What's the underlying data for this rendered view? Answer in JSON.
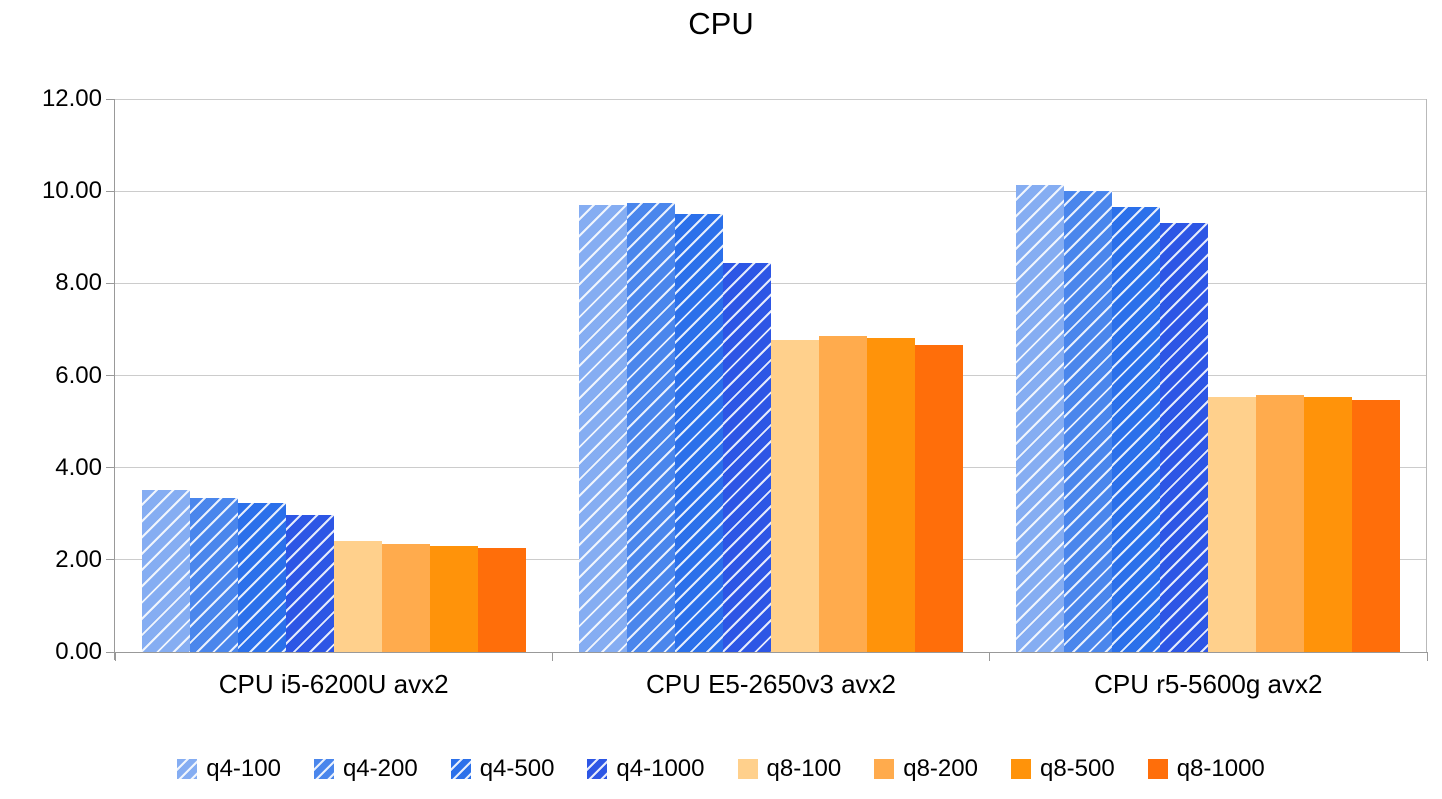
{
  "chart_data": {
    "type": "bar",
    "title": "CPU",
    "categories": [
      "CPU i5-6200U avx2",
      "CPU E5-2650v3 avx2",
      "CPU r5-5600g avx2"
    ],
    "series": [
      {
        "name": "q4-100",
        "color": "#85ADF2",
        "hatch": true,
        "values": [
          3.51,
          9.71,
          10.13
        ]
      },
      {
        "name": "q4-200",
        "color": "#4A86EC",
        "hatch": true,
        "values": [
          3.34,
          9.74,
          10.0
        ]
      },
      {
        "name": "q4-500",
        "color": "#2B70EA",
        "hatch": true,
        "values": [
          3.24,
          9.51,
          9.65
        ]
      },
      {
        "name": "q4-1000",
        "color": "#2D56E5",
        "hatch": true,
        "values": [
          2.97,
          8.44,
          9.31
        ]
      },
      {
        "name": "q8-100",
        "color": "#FFD08C",
        "hatch": false,
        "values": [
          2.4,
          6.76,
          5.54
        ]
      },
      {
        "name": "q8-200",
        "color": "#FFAB4D",
        "hatch": false,
        "values": [
          2.35,
          6.86,
          5.57
        ]
      },
      {
        "name": "q8-500",
        "color": "#FF930A",
        "hatch": false,
        "values": [
          2.31,
          6.81,
          5.53
        ]
      },
      {
        "name": "q8-1000",
        "color": "#FF6E0A",
        "hatch": false,
        "values": [
          2.26,
          6.67,
          5.47
        ]
      }
    ],
    "ylim": [
      0,
      12
    ],
    "y_tick_labels": [
      "12.00",
      "10.00",
      "8.00",
      "6.00",
      "4.00",
      "2.00",
      "0.00"
    ],
    "grid": true,
    "legend_position": "bottom"
  },
  "colors": {
    "gridline": "#cccccc",
    "axis": "#999999",
    "text": "#000000",
    "background": "#ffffff"
  }
}
